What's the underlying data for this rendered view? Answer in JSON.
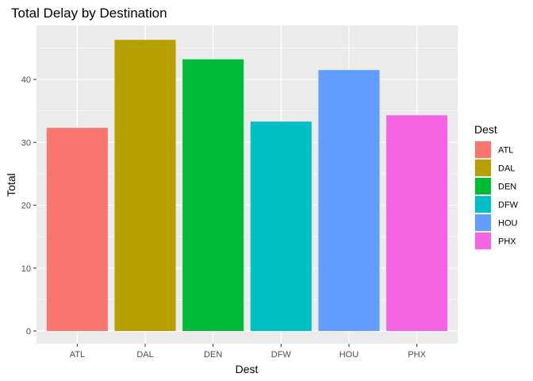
{
  "chart_data": {
    "type": "bar",
    "title": "Total Delay by Destination",
    "xlabel": "Dest",
    "ylabel": "Total",
    "categories": [
      "ATL",
      "DAL",
      "DEN",
      "DFW",
      "HOU",
      "PHX"
    ],
    "values": [
      32.3,
      46.3,
      43.2,
      33.3,
      41.5,
      34.3
    ],
    "ylim": [
      0,
      48.6
    ],
    "yticks": [
      0,
      10,
      20,
      30,
      40
    ],
    "grid": true,
    "legend": {
      "title": "Dest",
      "position": "right",
      "entries": [
        "ATL",
        "DAL",
        "DEN",
        "DFW",
        "HOU",
        "PHX"
      ]
    },
    "colors": [
      "#F8766D",
      "#B79F00",
      "#00BA38",
      "#00BFC4",
      "#619CFF",
      "#F564E3"
    ],
    "panel_background": "#EBEBEB",
    "gridline_color": "#FFFFFF"
  }
}
